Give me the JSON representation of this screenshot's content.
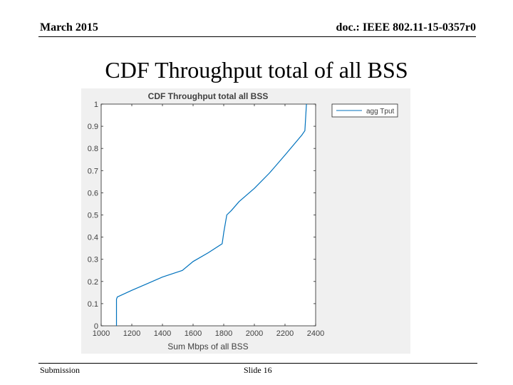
{
  "header": {
    "date": "March 2015",
    "doc_id": "doc.: IEEE 802.11-15-0357r0"
  },
  "slide": {
    "title": "CDF Throughput total of all BSS"
  },
  "footer": {
    "left": "Submission",
    "center": "Slide 16"
  },
  "colors": {
    "line": "#0072bd",
    "axis": "#262626",
    "figure_bg": "#f0f0f0"
  },
  "chart_data": {
    "type": "line",
    "title": "CDF Throughput total all BSS",
    "xlabel": "Sum Mbps of all BSS",
    "ylabel": "",
    "xlim": [
      1000,
      2400
    ],
    "ylim": [
      0,
      1
    ],
    "xticks": [
      1000,
      1200,
      1400,
      1600,
      1800,
      2000,
      2200,
      2400
    ],
    "yticks": [
      0,
      0.1,
      0.2,
      0.3,
      0.4,
      0.5,
      0.6,
      0.7,
      0.8,
      0.9,
      1
    ],
    "grid": false,
    "legend_position": "top-right",
    "series": [
      {
        "name": "agg Tput",
        "x": [
          1100,
          1100,
          1105,
          1200,
          1300,
          1400,
          1530,
          1600,
          1700,
          1790,
          1800,
          1820,
          1850,
          1900,
          2000,
          2100,
          2200,
          2310,
          2330,
          2340
        ],
        "y": [
          0,
          0.12,
          0.13,
          0.16,
          0.19,
          0.22,
          0.25,
          0.29,
          0.33,
          0.37,
          0.42,
          0.5,
          0.52,
          0.56,
          0.62,
          0.69,
          0.77,
          0.86,
          0.88,
          1.0
        ]
      }
    ]
  }
}
